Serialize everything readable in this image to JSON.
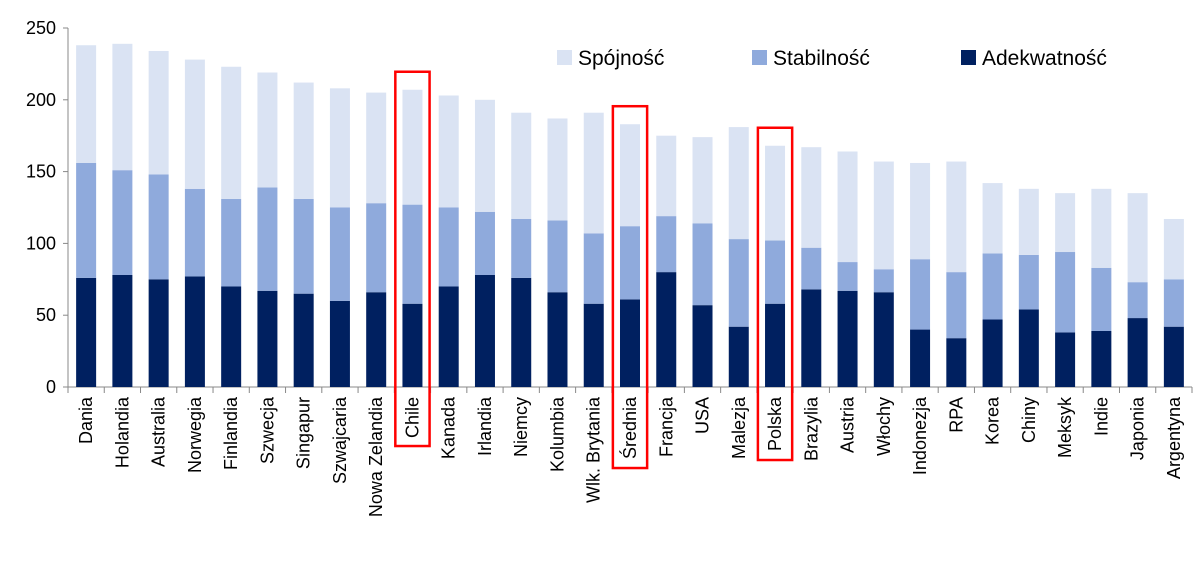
{
  "chart_data": {
    "type": "stacked_bar",
    "categories": [
      "Dania",
      "Holandia",
      "Australia",
      "Norwegia",
      "Finlandia",
      "Szwecja",
      "Singapur",
      "Szwajcaria",
      "Nowa Zelandia",
      "Chile",
      "Kanada",
      "Irlandia",
      "Niemcy",
      "Kolumbia",
      "Wlk. Brytania",
      "Średnia",
      "Francja",
      "USA",
      "Malezja",
      "Polska",
      "Brazylia",
      "Austria",
      "Włochy",
      "Indonezja",
      "RPA",
      "Korea",
      "Chiny",
      "Meksyk",
      "Indie",
      "Japonia",
      "Argentyna"
    ],
    "series": [
      {
        "name": "Adekwatność",
        "color": "#002060",
        "values": [
          76,
          78,
          75,
          77,
          70,
          67,
          65,
          60,
          66,
          58,
          70,
          78,
          76,
          66,
          58,
          61,
          80,
          57,
          42,
          58,
          68,
          67,
          66,
          40,
          34,
          47,
          54,
          38,
          39,
          48,
          42
        ]
      },
      {
        "name": "Stabilność",
        "color": "#8faadc",
        "values": [
          80,
          73,
          73,
          61,
          61,
          72,
          66,
          65,
          62,
          69,
          55,
          44,
          41,
          50,
          49,
          51,
          39,
          57,
          61,
          44,
          29,
          20,
          16,
          49,
          46,
          46,
          38,
          56,
          44,
          25,
          33
        ]
      },
      {
        "name": "Spójność",
        "color": "#dae3f3",
        "values": [
          82,
          88,
          86,
          90,
          92,
          80,
          81,
          83,
          77,
          80,
          78,
          78,
          74,
          71,
          84,
          71,
          56,
          60,
          78,
          66,
          70,
          77,
          75,
          67,
          77,
          49,
          46,
          41,
          55,
          62,
          42
        ]
      }
    ],
    "legend_order": [
      2,
      1,
      0
    ],
    "highlight": [
      9,
      15,
      19
    ],
    "highlight_color": "#ff0000",
    "ylim": [
      0,
      250
    ],
    "yticks": [
      0,
      50,
      100,
      150,
      200,
      250
    ],
    "grid": false
  }
}
